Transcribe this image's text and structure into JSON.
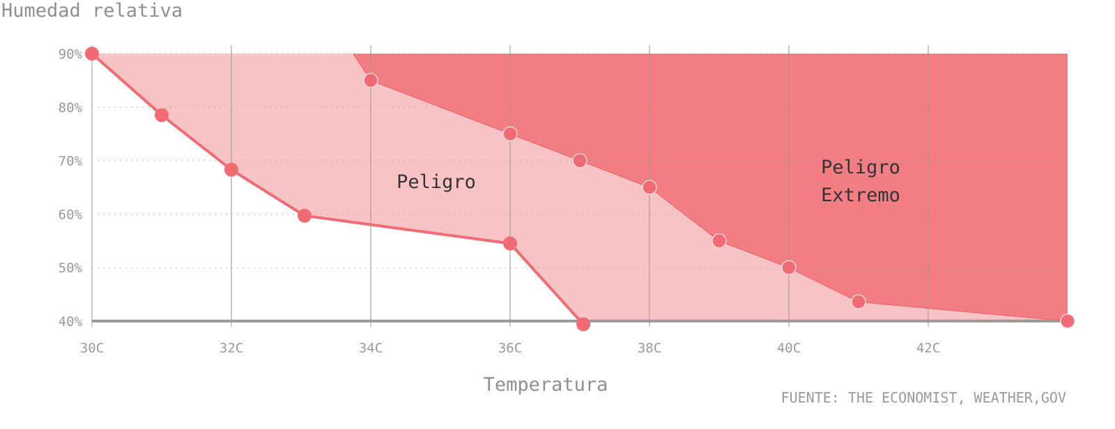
{
  "chart_data": {
    "type": "area",
    "ylabel": "Humedad relativa",
    "xlabel": "Temperatura",
    "source": "FUENTE: THE ECONOMIST, WEATHER,GOV",
    "xlim": [
      30,
      44
    ],
    "ylim": [
      40,
      90
    ],
    "x_ticks": [
      30,
      32,
      34,
      36,
      38,
      40,
      42
    ],
    "x_tick_labels": [
      "30C",
      "32C",
      "34C",
      "36C",
      "38C",
      "40C",
      "42C"
    ],
    "y_ticks": [
      40,
      50,
      60,
      70,
      80,
      90
    ],
    "y_tick_labels": [
      "40%",
      "50%",
      "60%",
      "70%",
      "80%",
      "90%"
    ],
    "grid": true,
    "colors": {
      "danger": "#f8c3c5",
      "extreme": "#f27e83",
      "line": "#f06b73",
      "axis": "#9a9a9a"
    },
    "series": [
      {
        "name": "Peligro",
        "points": [
          [
            30,
            90
          ],
          [
            31,
            78.5
          ],
          [
            32,
            68.3
          ],
          [
            33.05,
            59.7
          ],
          [
            36,
            54.5
          ],
          [
            37.05,
            39.4
          ]
        ]
      },
      {
        "name": "Peligro Extremo",
        "start": [
          33.75,
          90
        ],
        "points": [
          [
            34,
            85
          ],
          [
            36,
            75
          ],
          [
            37,
            70
          ],
          [
            38,
            65
          ],
          [
            39,
            55
          ],
          [
            40,
            50
          ],
          [
            41,
            43.6
          ],
          [
            44,
            40
          ]
        ]
      }
    ],
    "annotations": [
      {
        "label": "Peligro",
        "lines": [
          "Peligro"
        ]
      },
      {
        "label": "Peligro Extremo",
        "lines": [
          "Peligro",
          "Extremo"
        ]
      }
    ]
  }
}
